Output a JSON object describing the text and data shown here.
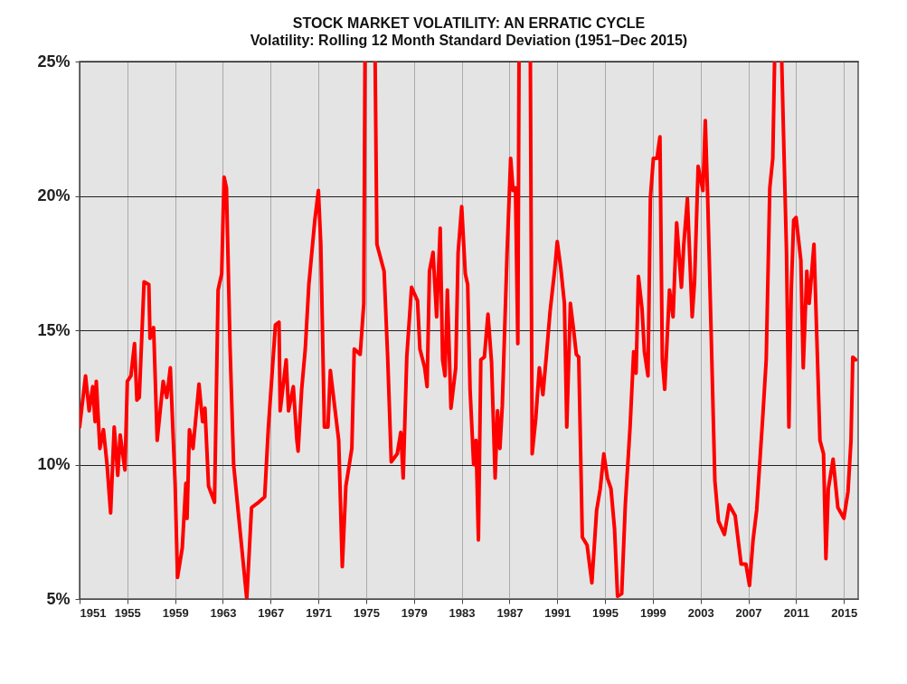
{
  "chart_data": {
    "type": "line",
    "title": "STOCK MARKET VOLATILITY: AN ERRATIC CYCLE",
    "subtitle": "Volatility: Rolling 12 Month Standard Deviation (1951–Dec 2015)",
    "x": [
      1951.0,
      1951.5,
      1951.8,
      1952.1,
      1952.3,
      1952.4,
      1952.7,
      1953.0,
      1953.3,
      1953.6,
      1953.9,
      1954.2,
      1954.4,
      1954.8,
      1955.0,
      1955.3,
      1955.6,
      1955.8,
      1956.0,
      1956.4,
      1956.8,
      1956.9,
      1957.2,
      1957.5,
      1958.0,
      1958.3,
      1958.6,
      1959.0,
      1959.2,
      1959.6,
      1959.9,
      1960.0,
      1960.2,
      1960.5,
      1961.0,
      1961.3,
      1961.5,
      1961.8,
      1962.3,
      1962.6,
      1962.9,
      1963.1,
      1963.3,
      1963.6,
      1963.9,
      1965.0,
      1965.4,
      1966.0,
      1966.5,
      1966.8,
      1967.4,
      1967.7,
      1967.8,
      1968.3,
      1968.5,
      1968.9,
      1969.2,
      1969.3,
      1969.6,
      1969.9,
      1970.2,
      1970.7,
      1971.0,
      1971.2,
      1971.5,
      1971.8,
      1972.0,
      1972.7,
      1973.0,
      1973.3,
      1973.8,
      1974.0,
      1974.5,
      1974.8,
      1974.9,
      1975.3,
      1975.75,
      1975.9,
      1976.5,
      1976.8,
      1977.1,
      1977.6,
      1977.9,
      1978.1,
      1978.4,
      1978.8,
      1979.3,
      1979.5,
      1979.9,
      1980.1,
      1980.3,
      1980.6,
      1980.9,
      1981.2,
      1981.4,
      1981.6,
      1981.8,
      1982.1,
      1982.5,
      1982.7,
      1983.0,
      1983.3,
      1983.5,
      1983.7,
      1984.0,
      1984.2,
      1984.4,
      1984.6,
      1984.9,
      1985.2,
      1985.5,
      1985.8,
      1986.0,
      1986.2,
      1986.4,
      1986.8,
      1987.1,
      1987.3,
      1987.5,
      1987.7,
      1987.8,
      1988.3,
      1988.75,
      1988.9,
      1989.2,
      1989.5,
      1989.8,
      1990.1,
      1990.4,
      1990.8,
      1991.0,
      1991.3,
      1991.6,
      1991.8,
      1992.1,
      1992.4,
      1992.6,
      1992.8,
      1993.1,
      1993.5,
      1993.9,
      1994.3,
      1994.6,
      1994.9,
      1995.2,
      1995.5,
      1995.8,
      1996.05,
      1996.4,
      1996.7,
      1997.1,
      1997.4,
      1997.6,
      1997.8,
      1998.1,
      1998.3,
      1998.6,
      1998.8,
      1999.05,
      1999.35,
      1999.6,
      1999.8,
      2000.0,
      2000.4,
      2000.7,
      2001.0,
      2001.4,
      2001.6,
      2001.9,
      2002.3,
      2002.5,
      2002.8,
      2003.2,
      2003.4,
      2003.6,
      2003.9,
      2004.2,
      2004.5,
      2005.0,
      2005.4,
      2005.9,
      2006.4,
      2006.8,
      2007.1,
      2007.4,
      2007.7,
      2008.2,
      2008.5,
      2008.8,
      2009.05,
      2009.2,
      2009.5,
      2009.8,
      2009.95,
      2010.2,
      2010.4,
      2010.6,
      2010.8,
      2011.0,
      2011.4,
      2011.6,
      2011.9,
      2012.1,
      2012.5,
      2013.0,
      2013.3,
      2013.5,
      2013.7,
      2014.1,
      2014.5,
      2015.0,
      2015.35,
      2015.6,
      2015.75,
      2016.0
    ],
    "series": [
      {
        "color": "#ff0000",
        "values": [
          11.4,
          13.3,
          12.0,
          12.9,
          11.6,
          13.1,
          10.6,
          11.3,
          10.0,
          8.2,
          11.4,
          9.6,
          11.1,
          9.8,
          13.1,
          13.3,
          14.5,
          12.4,
          12.5,
          16.8,
          16.7,
          14.7,
          15.1,
          10.9,
          13.1,
          12.5,
          13.6,
          9.3,
          5.8,
          6.9,
          9.3,
          8.0,
          11.3,
          10.6,
          13.0,
          11.6,
          12.1,
          9.2,
          8.6,
          16.5,
          17.1,
          20.7,
          20.3,
          14.4,
          10.0,
          5.0,
          8.4,
          8.6,
          8.8,
          11.3,
          15.2,
          15.3,
          12.0,
          13.9,
          12.0,
          12.9,
          10.9,
          10.5,
          12.8,
          14.3,
          16.7,
          19.1,
          20.2,
          18.2,
          11.4,
          11.4,
          13.5,
          10.9,
          6.2,
          9.2,
          10.6,
          14.3,
          14.1,
          16.0,
          25,
          null,
          25,
          18.2,
          17.2,
          14.0,
          10.1,
          10.4,
          11.2,
          9.5,
          14.0,
          16.6,
          16.1,
          14.3,
          13.6,
          12.9,
          17.2,
          17.9,
          15.5,
          18.8,
          13.9,
          13.3,
          16.5,
          12.1,
          13.6,
          17.9,
          19.6,
          17.1,
          16.7,
          12.8,
          10.0,
          10.9,
          7.2,
          13.9,
          14.0,
          15.6,
          13.8,
          9.5,
          12.0,
          10.6,
          12.2,
          17.9,
          21.4,
          20.2,
          20.3,
          14.5,
          25,
          null,
          25,
          10.4,
          11.7,
          13.6,
          12.6,
          14.1,
          15.7,
          17.3,
          18.3,
          17.3,
          16.0,
          11.4,
          16.0,
          14.9,
          14.1,
          14.0,
          7.3,
          7.0,
          5.6,
          8.3,
          9.1,
          10.4,
          9.5,
          9.1,
          7.6,
          5.1,
          5.2,
          8.5,
          11.4,
          14.2,
          13.4,
          17.0,
          15.8,
          14.2,
          13.3,
          19.9,
          21.4,
          21.4,
          22.2,
          13.9,
          12.8,
          16.5,
          15.5,
          19.0,
          16.6,
          18.2,
          19.9,
          15.5,
          16.8,
          21.1,
          20.2,
          22.8,
          19.9,
          14.7,
          9.4,
          7.9,
          7.4,
          8.5,
          8.1,
          6.3,
          6.3,
          5.5,
          7.2,
          8.3,
          11.7,
          13.9,
          20.3,
          21.4,
          25,
          null,
          25,
          22.3,
          17.9,
          11.4,
          16.5,
          19.1,
          19.2,
          17.6,
          13.6,
          17.2,
          16.0,
          18.2,
          10.9,
          10.4,
          6.5,
          9.1,
          10.2,
          8.4,
          8.0,
          9.0,
          10.9,
          14.0,
          13.9
        ]
      }
    ],
    "xlim": [
      1951,
      2016.2
    ],
    "xticks": [
      1951,
      1955,
      1959,
      1963,
      1967,
      1971,
      1975,
      1979,
      1983,
      1987,
      1991,
      1995,
      1999,
      2003,
      2007,
      2011,
      2015
    ],
    "ylim": [
      5,
      25
    ],
    "yticks": [
      {
        "value": 5,
        "label": "5%"
      },
      {
        "value": 10,
        "label": "10%"
      },
      {
        "value": 15,
        "label": "15%"
      },
      {
        "value": 20,
        "label": "20%"
      },
      {
        "value": 25,
        "label": "25%"
      }
    ],
    "grid": true,
    "line_style": "solid"
  }
}
